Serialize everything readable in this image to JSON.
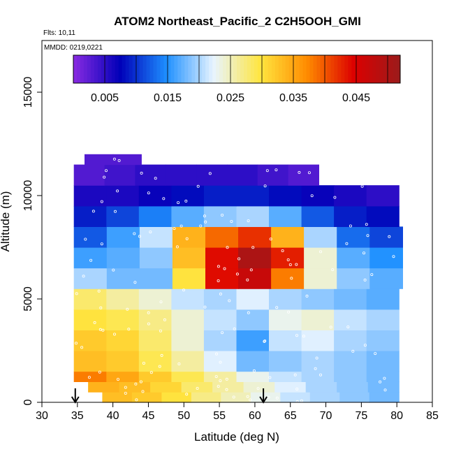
{
  "chart_data": {
    "type": "heatmap",
    "title": "ATOM2 Northeast_Pacific_2 C2H5OOH_GMI",
    "annotations": {
      "flights": "Flts: 10,11",
      "dates": "MMDD: 0219,0221"
    },
    "xlabel": "Latitude (deg N)",
    "ylabel": "Altitude (m)",
    "xlim": [
      30,
      85
    ],
    "ylim": [
      0,
      17500
    ],
    "xticks": [
      30,
      35,
      40,
      45,
      50,
      55,
      60,
      65,
      70,
      75,
      80,
      85
    ],
    "yticks": [
      0,
      5000,
      10000,
      15000
    ],
    "colorbar": {
      "range": [
        0,
        0.052
      ],
      "ticks": [
        0.005,
        0.015,
        0.025,
        0.035,
        0.045
      ],
      "tick_labels": [
        "0.005",
        "0.015",
        "0.025",
        "0.035",
        "0.045"
      ],
      "colors": [
        "#8a2be2",
        "#0000b8",
        "#1e90ff",
        "#e8f4ff",
        "#ffe640",
        "#ff8c00",
        "#dc0000",
        "#9b1b1b"
      ]
    },
    "arrows_lat": [
      34.7,
      61.2
    ],
    "layers": [
      {
        "alt": [
          0,
          500
        ],
        "lat": [
          38.5,
          80.3
        ],
        "values": [
          0.033,
          0.032,
          0.03,
          0.027,
          0.025,
          0.023,
          0.021,
          0.02,
          0.019,
          0.018
        ]
      },
      {
        "alt": [
          500,
          1000
        ],
        "lat": [
          36.5,
          80.3
        ],
        "values": [
          0.034,
          0.033,
          0.031,
          0.028,
          0.026,
          0.024,
          0.022,
          0.02,
          0.019,
          0.018
        ]
      },
      {
        "alt": [
          1000,
          1500
        ],
        "lat": [
          34.5,
          80.3
        ],
        "values": [
          0.038,
          0.035,
          0.032,
          0.029,
          0.026,
          0.023,
          0.021,
          0.02,
          0.019,
          0.018
        ]
      },
      {
        "alt": [
          1500,
          2500
        ],
        "lat": [
          34.5,
          80.3
        ],
        "values": [
          0.033,
          0.032,
          0.029,
          0.026,
          0.022,
          0.018,
          0.019,
          0.02,
          0.019,
          0.018
        ]
      },
      {
        "alt": [
          2500,
          3500
        ],
        "lat": [
          34.5,
          80.3
        ],
        "values": [
          0.032,
          0.031,
          0.028,
          0.024,
          0.02,
          0.016,
          0.021,
          0.022,
          0.02,
          0.019
        ]
      },
      {
        "alt": [
          3500,
          4500
        ],
        "lat": [
          34.5,
          80.3
        ],
        "values": [
          0.03,
          0.029,
          0.027,
          0.024,
          0.021,
          0.019,
          0.023,
          0.024,
          0.021,
          0.02
        ]
      },
      {
        "alt": [
          4500,
          5500
        ],
        "lat": [
          34.5,
          80.3
        ],
        "values": [
          0.028,
          0.026,
          0.024,
          0.021,
          0.02,
          0.022,
          0.02,
          0.019,
          0.018,
          0.017
        ]
      },
      {
        "alt": [
          5500,
          6500
        ],
        "lat": [
          34.5,
          80.8
        ],
        "values": [
          0.02,
          0.018,
          0.018,
          0.03,
          0.044,
          0.047,
          0.038,
          0.024,
          0.019,
          0.017
        ]
      },
      {
        "alt": [
          6500,
          7500
        ],
        "lat": [
          34.5,
          80.8
        ],
        "values": [
          0.016,
          0.017,
          0.019,
          0.033,
          0.044,
          0.05,
          0.043,
          0.024,
          0.017,
          0.015
        ]
      },
      {
        "alt": [
          7500,
          8500
        ],
        "lat": [
          34.5,
          80.8
        ],
        "values": [
          0.012,
          0.016,
          0.021,
          0.034,
          0.039,
          0.042,
          0.034,
          0.02,
          0.013,
          0.011
        ]
      },
      {
        "alt": [
          8500,
          9500
        ],
        "lat": [
          34.5,
          80.3
        ],
        "values": [
          0.009,
          0.011,
          0.014,
          0.017,
          0.019,
          0.02,
          0.017,
          0.012,
          0.009,
          0.008
        ]
      },
      {
        "alt": [
          9500,
          10500
        ],
        "lat": [
          34.5,
          80.3
        ],
        "values": [
          0.006,
          0.006,
          0.007,
          0.008,
          0.009,
          0.009,
          0.008,
          0.007,
          0.006,
          0.005
        ]
      },
      {
        "alt": [
          10500,
          11500
        ],
        "lat": [
          34.5,
          69.0
        ],
        "values": [
          0.003,
          0.004,
          0.005,
          0.005,
          0.005,
          0.005,
          0.004,
          0.003
        ]
      },
      {
        "alt": [
          11500,
          12000
        ],
        "lat": [
          36.0,
          44.0
        ],
        "values": [
          0.003,
          0.003
        ]
      }
    ]
  }
}
